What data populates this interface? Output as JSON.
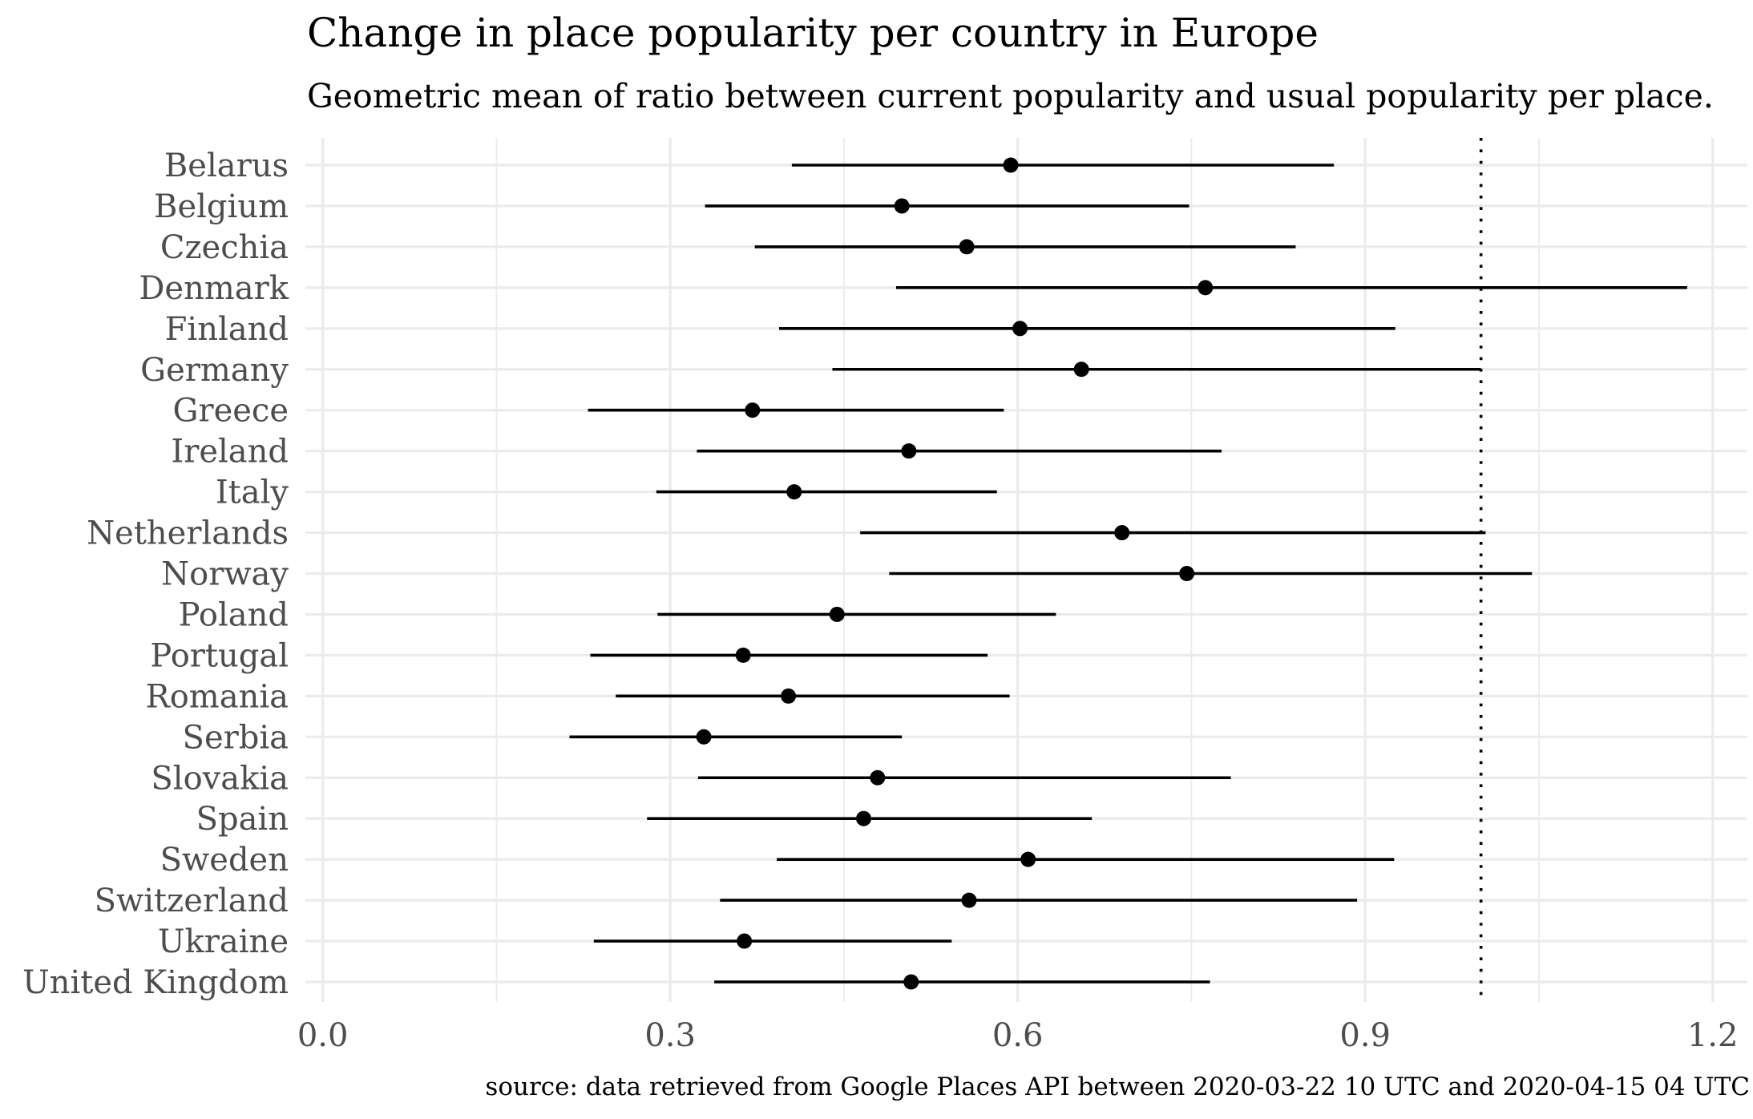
{
  "chart_data": {
    "type": "errorbar",
    "title": "Change in place popularity per country in Europe",
    "subtitle": "Geometric mean of ratio between current popularity and usual popularity per place.",
    "caption": "source: data retrieved from Google Places API between 2020-03-22 10 UTC and 2020-04-15 04 UTC",
    "xlabel": "",
    "ylabel": "",
    "xlim": [
      -0.015,
      1.23
    ],
    "x_ticks": [
      0.0,
      0.3,
      0.6,
      0.9,
      1.2
    ],
    "x_tick_labels": [
      "0.0",
      "0.3",
      "0.6",
      "0.9",
      "1.2"
    ],
    "reference_line": {
      "x": 1.0,
      "style": "dotted",
      "color": "#000000"
    },
    "grid": true,
    "legend": "none",
    "colors": {
      "point": "#000000",
      "interval": "#000000",
      "grid": "#ebebeb",
      "tick_label": "#4d4d4d"
    },
    "categories": [
      "Belarus",
      "Belgium",
      "Czechia",
      "Denmark",
      "Finland",
      "Germany",
      "Greece",
      "Ireland",
      "Italy",
      "Netherlands",
      "Norway",
      "Poland",
      "Portugal",
      "Romania",
      "Serbia",
      "Slovakia",
      "Spain",
      "Sweden",
      "Switzerland",
      "Ukraine",
      "United Kingdom"
    ],
    "points": [
      {
        "category": "Belarus",
        "value": 0.594,
        "low": 0.405,
        "high": 0.873
      },
      {
        "category": "Belgium",
        "value": 0.5,
        "low": 0.33,
        "high": 0.748
      },
      {
        "category": "Czechia",
        "value": 0.556,
        "low": 0.373,
        "high": 0.84
      },
      {
        "category": "Denmark",
        "value": 0.762,
        "low": 0.495,
        "high": 1.178
      },
      {
        "category": "Finland",
        "value": 0.602,
        "low": 0.394,
        "high": 0.926
      },
      {
        "category": "Germany",
        "value": 0.655,
        "low": 0.44,
        "high": 1.0
      },
      {
        "category": "Greece",
        "value": 0.371,
        "low": 0.229,
        "high": 0.588
      },
      {
        "category": "Ireland",
        "value": 0.506,
        "low": 0.323,
        "high": 0.776
      },
      {
        "category": "Italy",
        "value": 0.407,
        "low": 0.288,
        "high": 0.582
      },
      {
        "category": "Netherlands",
        "value": 0.69,
        "low": 0.464,
        "high": 1.004
      },
      {
        "category": "Norway",
        "value": 0.746,
        "low": 0.489,
        "high": 1.044
      },
      {
        "category": "Poland",
        "value": 0.444,
        "low": 0.289,
        "high": 0.633
      },
      {
        "category": "Portugal",
        "value": 0.363,
        "low": 0.231,
        "high": 0.574
      },
      {
        "category": "Romania",
        "value": 0.402,
        "low": 0.253,
        "high": 0.593
      },
      {
        "category": "Serbia",
        "value": 0.329,
        "low": 0.213,
        "high": 0.5
      },
      {
        "category": "Slovakia",
        "value": 0.479,
        "low": 0.324,
        "high": 0.784
      },
      {
        "category": "Spain",
        "value": 0.467,
        "low": 0.28,
        "high": 0.664
      },
      {
        "category": "Sweden",
        "value": 0.609,
        "low": 0.392,
        "high": 0.925
      },
      {
        "category": "Switzerland",
        "value": 0.558,
        "low": 0.343,
        "high": 0.893
      },
      {
        "category": "Ukraine",
        "value": 0.364,
        "low": 0.234,
        "high": 0.543
      },
      {
        "category": "United Kingdom",
        "value": 0.508,
        "low": 0.338,
        "high": 0.766
      }
    ]
  }
}
